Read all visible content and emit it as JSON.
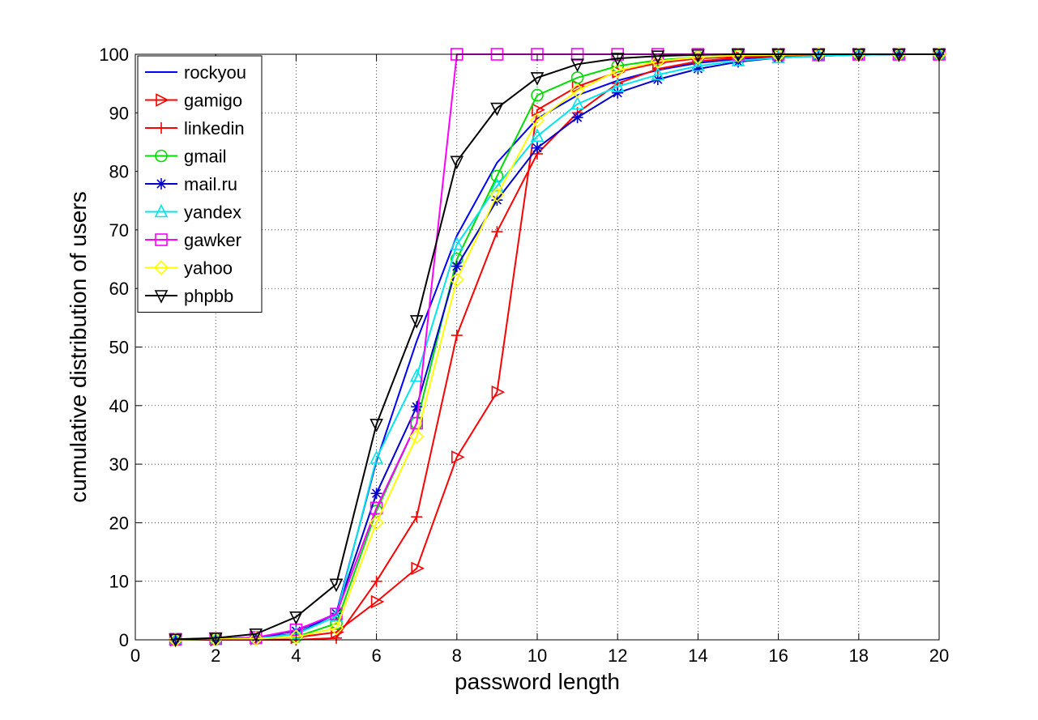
{
  "chart_data": {
    "type": "line",
    "title": "",
    "xlabel": "password length",
    "ylabel": "cumulative distribution of users",
    "xlim": [
      0,
      20
    ],
    "ylim": [
      0,
      100
    ],
    "xticks": [
      0,
      2,
      4,
      6,
      8,
      10,
      12,
      14,
      16,
      18,
      20
    ],
    "yticks": [
      0,
      10,
      20,
      30,
      40,
      50,
      60,
      70,
      80,
      90,
      100
    ],
    "grid": true,
    "legend_position": "top-left",
    "x": [
      1,
      2,
      3,
      4,
      5,
      6,
      7,
      8,
      9,
      10,
      11,
      12,
      13,
      14,
      15,
      16,
      17,
      18,
      19,
      20
    ],
    "series": [
      {
        "name": "rockyou",
        "color": "#0000ff",
        "marker": "none",
        "values": [
          0.1,
          0.2,
          0.4,
          1.0,
          4.5,
          30.5,
          51.0,
          69.0,
          81.5,
          89.0,
          93.0,
          95.5,
          97.3,
          98.5,
          99.2,
          99.6,
          99.8,
          99.9,
          100,
          100
        ]
      },
      {
        "name": "gamigo",
        "color": "#ff0000",
        "marker": "triangle-right",
        "values": [
          0.0,
          0.0,
          0.2,
          0.4,
          1.3,
          6.5,
          12.2,
          31.2,
          42.3,
          90.5,
          94.5,
          97.0,
          98.5,
          99.3,
          99.6,
          99.8,
          99.9,
          100,
          100,
          100
        ]
      },
      {
        "name": "linkedin",
        "color": "#ff0000",
        "marker": "plus",
        "values": [
          0.0,
          0.0,
          0.0,
          0.0,
          0.3,
          10.0,
          21.0,
          52.0,
          69.7,
          83.0,
          90.0,
          95.0,
          97.5,
          98.8,
          99.4,
          99.7,
          99.9,
          100,
          100,
          100
        ]
      },
      {
        "name": "gmail",
        "color": "#00dd00",
        "marker": "circle",
        "values": [
          0.0,
          0.1,
          0.2,
          0.5,
          2.8,
          22.0,
          37.0,
          65.0,
          79.2,
          93.0,
          96.0,
          98.0,
          99.0,
          99.5,
          99.8,
          99.9,
          100,
          100,
          100,
          100
        ]
      },
      {
        "name": "mail.ru",
        "color": "#0000cc",
        "marker": "asterisk",
        "values": [
          0.1,
          0.2,
          0.4,
          1.5,
          4.5,
          25.0,
          39.8,
          63.8,
          75.1,
          84.0,
          89.2,
          93.4,
          95.7,
          97.5,
          98.7,
          99.4,
          99.7,
          99.9,
          100,
          100
        ]
      },
      {
        "name": "yandex",
        "color": "#00e5ee",
        "marker": "triangle-up",
        "values": [
          0.0,
          0.1,
          0.2,
          1.0,
          4.0,
          31.0,
          45.0,
          67.5,
          77.5,
          86.0,
          91.5,
          94.5,
          96.5,
          98.0,
          98.9,
          99.4,
          99.7,
          99.9,
          100,
          100
        ]
      },
      {
        "name": "gawker",
        "color": "#ff00ff",
        "marker": "square",
        "values": [
          0.1,
          0.2,
          0.4,
          1.7,
          4.4,
          22.5,
          37.0,
          100,
          100,
          100,
          100,
          100,
          100,
          100,
          100,
          100,
          100,
          100,
          100,
          100
        ]
      },
      {
        "name": "yahoo",
        "color": "#ffff00",
        "marker": "diamond",
        "values": [
          0.0,
          0.1,
          0.2,
          0.5,
          2.0,
          20.0,
          34.7,
          61.5,
          76.0,
          88.7,
          93.8,
          97.2,
          98.8,
          99.5,
          99.8,
          99.9,
          100,
          100,
          100,
          100
        ]
      },
      {
        "name": "phpbb",
        "color": "#000000",
        "marker": "triangle-down",
        "values": [
          0.1,
          0.3,
          1.0,
          3.9,
          9.5,
          36.8,
          54.5,
          81.7,
          90.8,
          96.0,
          98.3,
          99.3,
          99.7,
          99.9,
          100,
          100,
          100,
          100,
          100,
          100
        ]
      }
    ]
  }
}
